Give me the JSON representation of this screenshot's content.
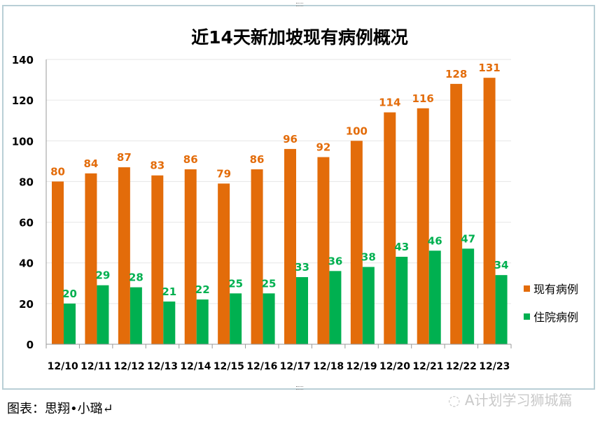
{
  "chart_data": {
    "type": "bar",
    "title": "近14天新加坡现有病例概况",
    "categories": [
      "12/10",
      "12/11",
      "12/12",
      "12/13",
      "12/14",
      "12/15",
      "12/16",
      "12/17",
      "12/18",
      "12/19",
      "12/20",
      "12/21",
      "12/22",
      "12/23"
    ],
    "series": [
      {
        "name": "现有病例",
        "color": "#E36C0A",
        "values": [
          80,
          84,
          87,
          83,
          86,
          79,
          86,
          96,
          92,
          100,
          114,
          116,
          128,
          131
        ]
      },
      {
        "name": "住院病例",
        "color": "#00B050",
        "values": [
          20,
          29,
          28,
          21,
          22,
          25,
          25,
          33,
          36,
          38,
          43,
          46,
          47,
          34
        ]
      }
    ],
    "ylim": [
      0,
      140
    ],
    "yticks": [
      0,
      20,
      40,
      60,
      80,
      100,
      120,
      140
    ],
    "grid": true,
    "legend": "right"
  },
  "footer": {
    "caption": "图表：思翔•小璐↵",
    "watermark": "A计划学习狮城篇"
  }
}
